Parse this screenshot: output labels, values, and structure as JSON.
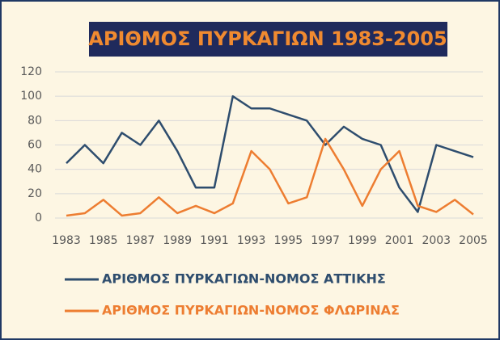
{
  "chart_data": {
    "type": "line",
    "title": "ΑΡΙΘΜΟΣ  ΠΥΡΚΑΓΙΩΝ 1983-2005",
    "x": [
      1983,
      1984,
      1985,
      1986,
      1987,
      1988,
      1989,
      1990,
      1991,
      1992,
      1993,
      1994,
      1995,
      1996,
      1997,
      1998,
      1999,
      2000,
      2001,
      2002,
      2003,
      2004,
      2005
    ],
    "series": [
      {
        "name": "ΑΡΙΘΜΟΣ ΠΥΡΚΑΓΙΩΝ-ΝΟΜΟΣ ΑΤΤΙΚΗΣ",
        "color": "#2e4d6e",
        "values": [
          45,
          60,
          45,
          70,
          60,
          80,
          55,
          25,
          25,
          100,
          90,
          90,
          85,
          80,
          60,
          75,
          65,
          60,
          25,
          5,
          60,
          55,
          50
        ]
      },
      {
        "name": "ΑΡΙΘΜΟΣ ΠΥΡΚΑΓΙΩΝ-ΝΟΜΟΣ ΦΛΩΡΙΝΑΣ",
        "color": "#ed7d31",
        "values": [
          2,
          4,
          15,
          2,
          4,
          17,
          4,
          10,
          4,
          12,
          55,
          40,
          12,
          17,
          65,
          40,
          10,
          40,
          55,
          10,
          5,
          15,
          3
        ]
      }
    ],
    "xlim": [
      1983,
      2005
    ],
    "xticks": [
      1983,
      1985,
      1987,
      1989,
      1991,
      1993,
      1995,
      1997,
      1999,
      2001,
      2003,
      2005
    ],
    "ylim": [
      0,
      120
    ],
    "yticks": [
      0,
      20,
      40,
      60,
      80,
      100,
      120
    ],
    "grid": true,
    "legend": "bottom"
  }
}
